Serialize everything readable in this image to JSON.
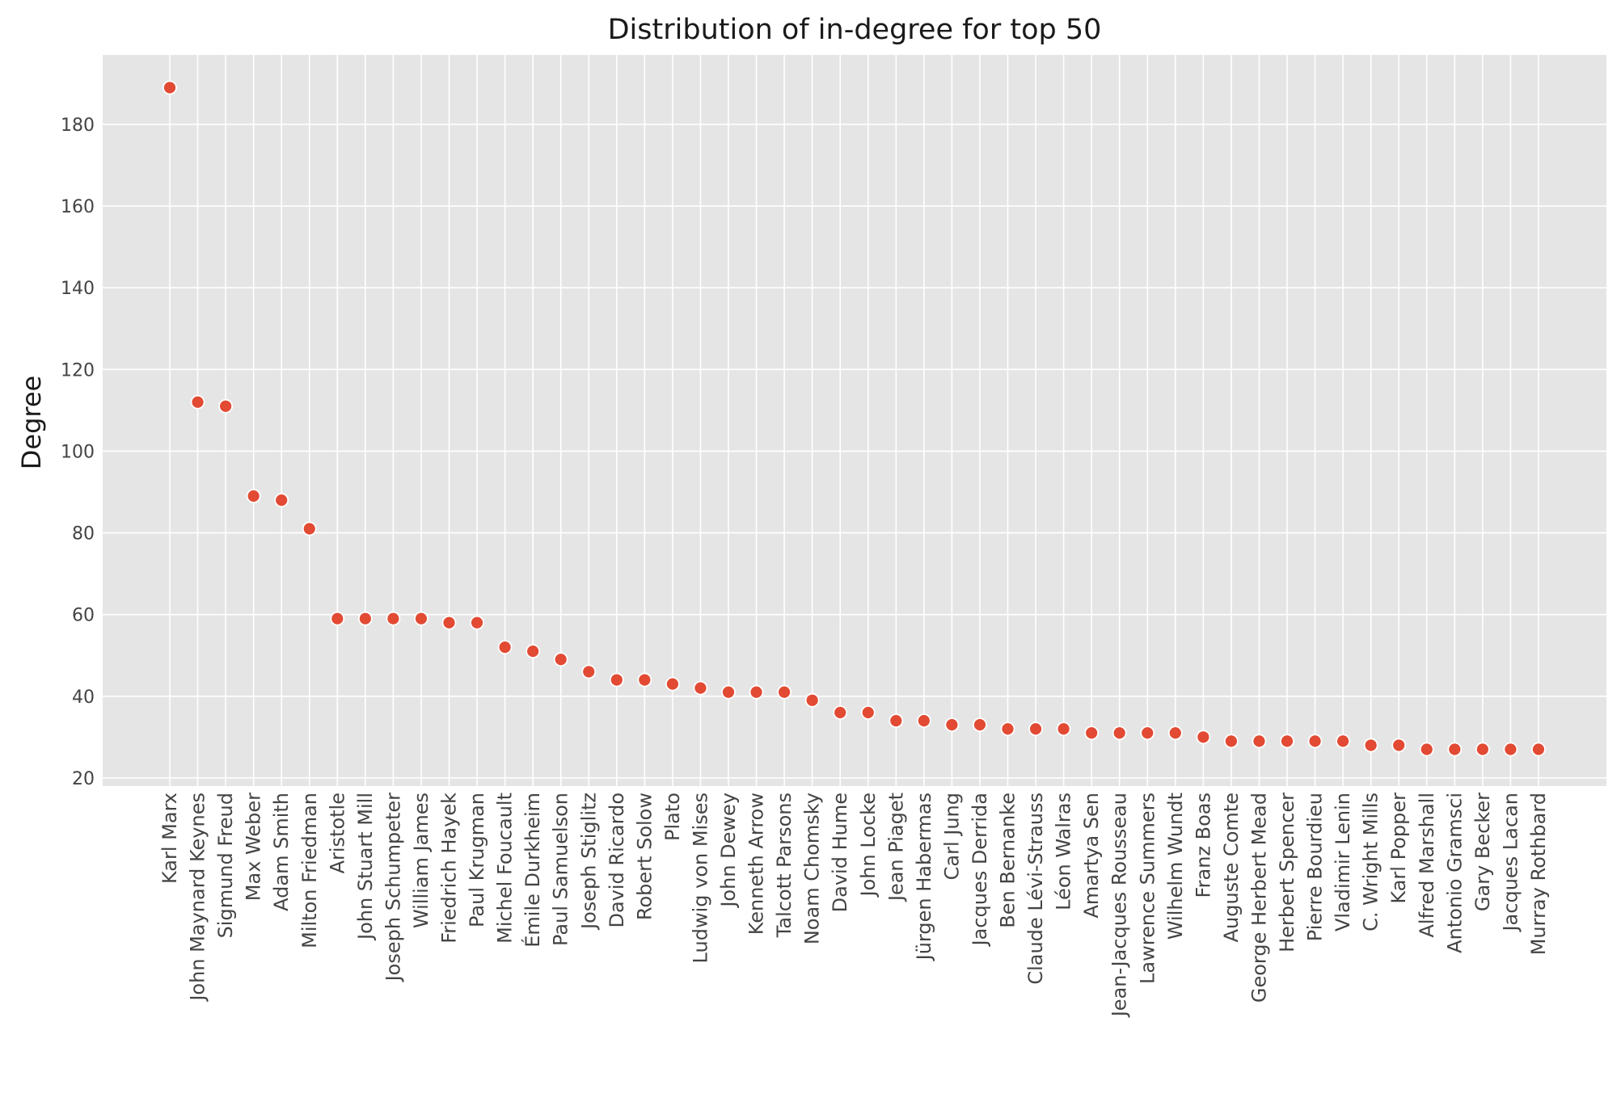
{
  "chart_data": {
    "type": "scatter",
    "title": "Distribution of in-degree for top 50",
    "xlabel": "",
    "ylabel": "Degree",
    "ylim": [
      18,
      197
    ],
    "yticks": [
      20,
      40,
      60,
      80,
      100,
      120,
      140,
      160,
      180
    ],
    "grid": true,
    "legend": "none",
    "colors": {
      "background": "#e5e5e5",
      "grid": "#ffffff",
      "marker": "#e24a33",
      "marker_edge": "#ffffff"
    },
    "categories": [
      "Karl Marx",
      "John Maynard Keynes",
      "Sigmund Freud",
      "Max Weber",
      "Adam Smith",
      "Milton Friedman",
      "Aristotle",
      "John Stuart Mill",
      "Joseph Schumpeter",
      "William James",
      "Friedrich Hayek",
      "Paul Krugman",
      "Michel Foucault",
      "Émile Durkheim",
      "Paul Samuelson",
      "Joseph Stiglitz",
      "David Ricardo",
      "Robert Solow",
      "Plato",
      "Ludwig von Mises",
      "John Dewey",
      "Kenneth Arrow",
      "Talcott Parsons",
      "Noam Chomsky",
      "David Hume",
      "John Locke",
      "Jean Piaget",
      "Jürgen Habermas",
      "Carl Jung",
      "Jacques Derrida",
      "Ben Bernanke",
      "Claude Lévi-Strauss",
      "Léon Walras",
      "Amartya Sen",
      "Jean-Jacques Rousseau",
      "Lawrence Summers",
      "Wilhelm Wundt",
      "Franz Boas",
      "Auguste Comte",
      "George Herbert Mead",
      "Herbert Spencer",
      "Pierre Bourdieu",
      "Vladimir Lenin",
      "C. Wright Mills",
      "Karl Popper",
      "Alfred Marshall",
      "Antonio Gramsci",
      "Gary Becker",
      "Jacques Lacan",
      "Murray Rothbard"
    ],
    "values": [
      189,
      112,
      111,
      89,
      88,
      81,
      59,
      59,
      59,
      59,
      58,
      58,
      52,
      51,
      49,
      46,
      44,
      44,
      43,
      42,
      41,
      41,
      41,
      39,
      36,
      36,
      34,
      34,
      33,
      33,
      32,
      32,
      32,
      31,
      31,
      31,
      31,
      30,
      29,
      29,
      29,
      29,
      29,
      28,
      28,
      27,
      27,
      27,
      27,
      27
    ]
  }
}
